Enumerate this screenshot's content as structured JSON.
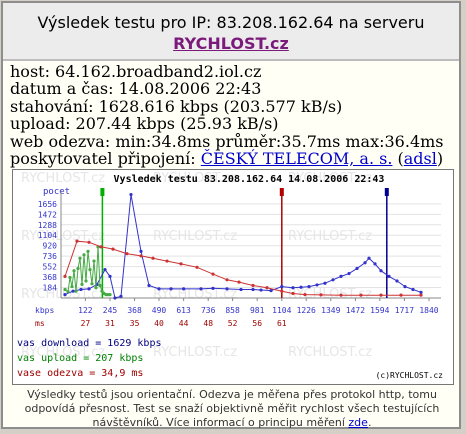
{
  "header": {
    "title": "Výsledek testu pro IP: 83.208.162.64 na serveru",
    "link": "RYCHLOST.cz"
  },
  "info": {
    "host": "host: 64.162.broadband2.iol.cz",
    "datetime": "datum a čas: 14.08.2006 22:43",
    "download": "stahování: 1628.616 kbps (203.577 kB/s)",
    "upload": "upload: 207.44 kbps (25.93 kB/s)",
    "ping": "web odezva: min:34.8ms průměr:35.7ms max:36.4ms",
    "provider_prefix": "poskytovatel připojení:",
    "provider_name": "ČESKÝ TELECOM, a. s.",
    "provider_type": "adsl"
  },
  "chart_data": {
    "type": "line",
    "title": "Vysledek testu 83.208.162.64 14.08.2006 22:43",
    "y_axis_label": "pocet",
    "y_ticks": [
      184,
      368,
      552,
      736,
      920,
      1104,
      1288,
      1472,
      1656
    ],
    "x_label_kbps": "kbps",
    "x_ticks_kbps": [
      122,
      245,
      368,
      490,
      613,
      736,
      858,
      981,
      1104,
      1226,
      1349,
      1472,
      1594,
      1717,
      1840
    ],
    "x_label_ms": "ms",
    "x_ticks_ms": [
      27,
      31,
      35,
      40,
      44,
      48,
      52,
      56,
      61
    ],
    "markers": [
      {
        "name": "upload",
        "x": 207,
        "color": "#00b000"
      },
      {
        "name": "odezva",
        "x": 1104,
        "color": "#b00000"
      },
      {
        "name": "download",
        "x": 1629,
        "color": "#000090"
      }
    ],
    "series": [
      {
        "name": "download",
        "color": "#3333cc",
        "points": [
          [
            20,
            60
          ],
          [
            60,
            120
          ],
          [
            100,
            150
          ],
          [
            140,
            160
          ],
          [
            180,
            240
          ],
          [
            220,
            500
          ],
          [
            245,
            380
          ],
          [
            270,
            0
          ],
          [
            300,
            30
          ],
          [
            350,
            1820
          ],
          [
            400,
            820
          ],
          [
            440,
            220
          ],
          [
            490,
            160
          ],
          [
            550,
            160
          ],
          [
            613,
            160
          ],
          [
            700,
            160
          ],
          [
            760,
            170
          ],
          [
            830,
            160
          ],
          [
            900,
            150
          ],
          [
            960,
            150
          ],
          [
            1000,
            140
          ],
          [
            1050,
            130
          ],
          [
            1104,
            200
          ],
          [
            1160,
            180
          ],
          [
            1200,
            190
          ],
          [
            1240,
            200
          ],
          [
            1280,
            230
          ],
          [
            1320,
            260
          ],
          [
            1360,
            320
          ],
          [
            1400,
            380
          ],
          [
            1440,
            430
          ],
          [
            1480,
            520
          ],
          [
            1520,
            620
          ],
          [
            1540,
            700
          ],
          [
            1570,
            600
          ],
          [
            1600,
            480
          ],
          [
            1640,
            380
          ],
          [
            1680,
            300
          ],
          [
            1720,
            200
          ],
          [
            1760,
            150
          ],
          [
            1800,
            100
          ]
        ]
      },
      {
        "name": "upload",
        "color": "#44aa44",
        "points": [
          [
            20,
            150
          ],
          [
            35,
            110
          ],
          [
            45,
            360
          ],
          [
            55,
            200
          ],
          [
            65,
            480
          ],
          [
            75,
            120
          ],
          [
            85,
            520
          ],
          [
            95,
            700
          ],
          [
            105,
            240
          ],
          [
            115,
            760
          ],
          [
            125,
            300
          ],
          [
            135,
            820
          ],
          [
            145,
            500
          ],
          [
            155,
            250
          ],
          [
            165,
            650
          ],
          [
            175,
            180
          ],
          [
            185,
            900
          ],
          [
            195,
            220
          ],
          [
            205,
            120
          ],
          [
            215,
            80
          ],
          [
            225,
            60
          ],
          [
            235,
            60
          ],
          [
            245,
            60
          ]
        ]
      },
      {
        "name": "odezva",
        "color": "#cc3333",
        "points": [
          [
            20,
            380
          ],
          [
            80,
            1000
          ],
          [
            140,
            980
          ],
          [
            200,
            900
          ],
          [
            260,
            860
          ],
          [
            330,
            780
          ],
          [
            400,
            740
          ],
          [
            460,
            700
          ],
          [
            530,
            650
          ],
          [
            600,
            600
          ],
          [
            680,
            540
          ],
          [
            760,
            420
          ],
          [
            830,
            320
          ],
          [
            890,
            280
          ],
          [
            960,
            220
          ],
          [
            1030,
            180
          ],
          [
            1104,
            120
          ],
          [
            1160,
            80
          ],
          [
            1220,
            60
          ],
          [
            1300,
            55
          ],
          [
            1400,
            50
          ],
          [
            1500,
            50
          ],
          [
            1600,
            50
          ],
          [
            1700,
            50
          ],
          [
            1800,
            50
          ]
        ]
      }
    ]
  },
  "legend": {
    "download": "vas download = 1629 kbps",
    "upload": "vas upload = 207 kbps",
    "ping": "vase odezva = 34,9 ms"
  },
  "copyright": "(c)RYCHLOST.cz",
  "watermark": "RYCHLOST.cz",
  "footer": {
    "line1": "Výsledky testů jsou orientační. Odezva je měřena přes protokol http, tomu",
    "line2": "odpovídá přesnost. Test se snaží objektivně měřit rychlost všech testujících",
    "line3_prefix": "návštěvníků. Více informací o principu měření",
    "line3_link": "zde",
    "line3_suffix": "."
  },
  "colors": {
    "legend_download": "#000080",
    "legend_upload": "#008000",
    "legend_ping": "#a00000"
  }
}
